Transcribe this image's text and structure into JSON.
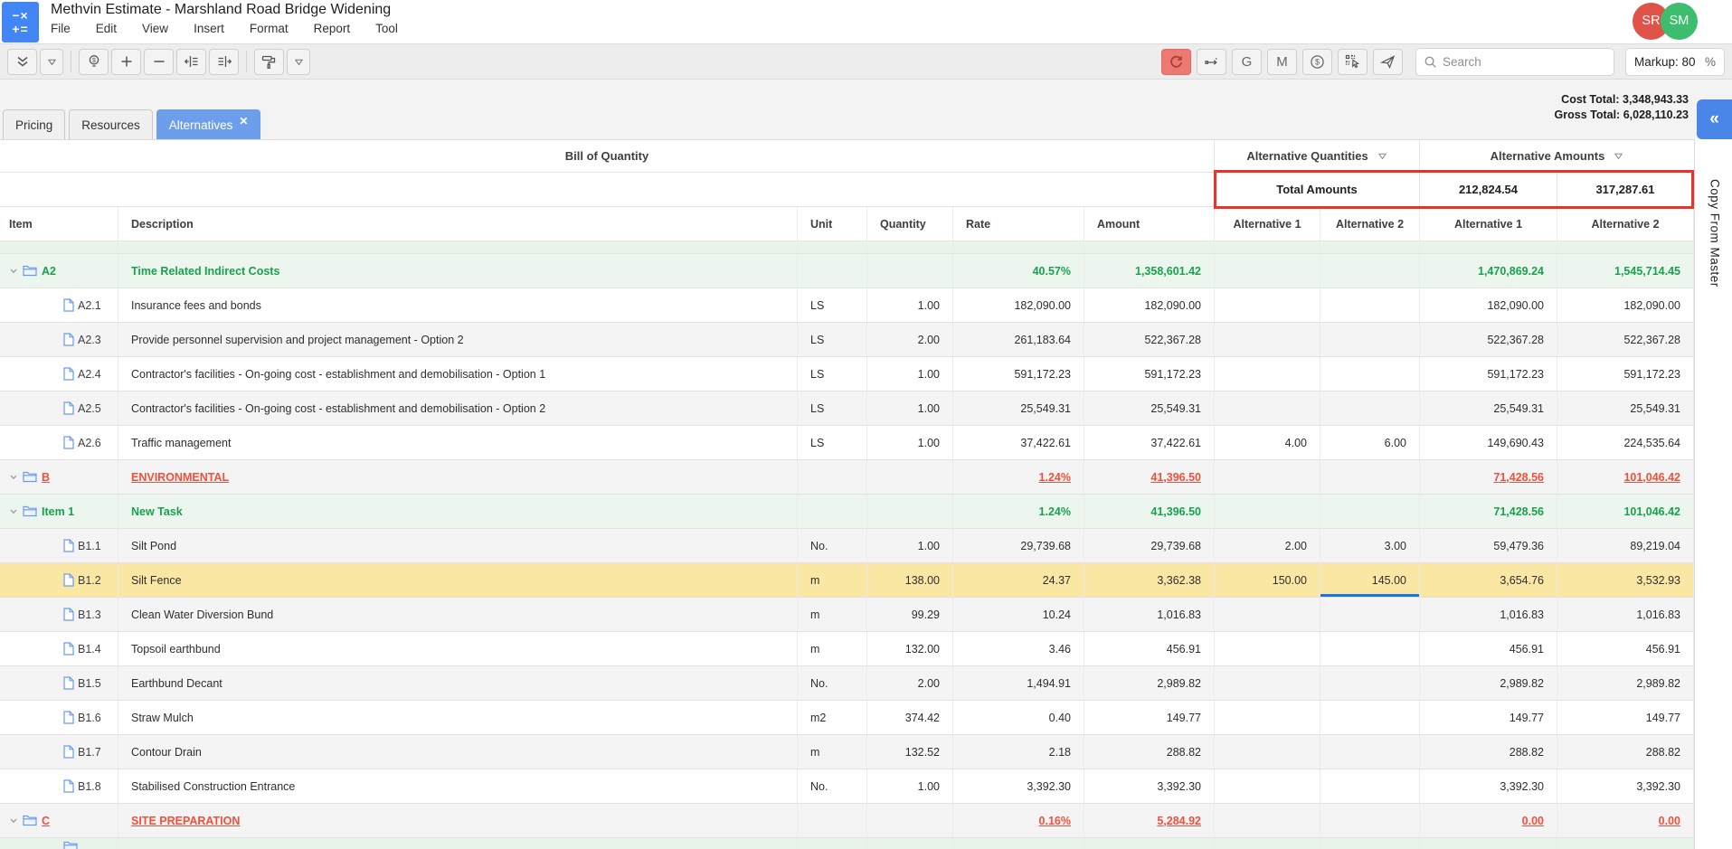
{
  "header": {
    "app_title": "Methvin Estimate - Marshland Road Bridge Widening",
    "menus": [
      "File",
      "Edit",
      "View",
      "Insert",
      "Format",
      "Report",
      "Tool"
    ],
    "avatars": [
      {
        "initials": "SR",
        "color": "#df5348"
      },
      {
        "initials": "SM",
        "color": "#3dbd6e"
      }
    ]
  },
  "toolbar": {
    "g_label": "G",
    "m_label": "M",
    "search_placeholder": "Search",
    "markup_label": "Markup:",
    "markup_value": "80",
    "markup_unit": "%"
  },
  "tabs": [
    {
      "label": "Pricing",
      "active": false
    },
    {
      "label": "Resources",
      "active": false
    },
    {
      "label": "Alternatives",
      "active": true,
      "closable": true
    }
  ],
  "totals": {
    "cost_label": "Cost Total:",
    "cost_value": "3,348,943.33",
    "gross_label": "Gross Total:",
    "gross_value": "6,028,110.23"
  },
  "side_panel": {
    "label": "Copy From Master"
  },
  "table": {
    "group_headers": {
      "boq": "Bill of Quantity",
      "alt_quantities": "Alternative Quantities",
      "alt_amounts": "Alternative Amounts"
    },
    "total_row": {
      "label": "Total Amounts",
      "alt1_amount": "212,824.54",
      "alt2_amount": "317,287.61"
    },
    "columns": [
      "Item",
      "Description",
      "Unit",
      "Quantity",
      "Rate",
      "Amount",
      "Alternative 1",
      "Alternative 2",
      "Alternative 1",
      "Alternative 2"
    ],
    "rows": [
      {
        "type": "strip"
      },
      {
        "type": "group-green",
        "code": "A2",
        "desc": "Time Related Indirect Costs",
        "rate": "40.57%",
        "amount": "1,358,601.42",
        "alt1a": "1,470,869.24",
        "alt2a": "1,545,714.45"
      },
      {
        "type": "item",
        "code": "A2.1",
        "desc": "Insurance fees and bonds",
        "unit": "LS",
        "qty": "1.00",
        "rate": "182,090.00",
        "amount": "182,090.00",
        "alt1a": "182,090.00",
        "alt2a": "182,090.00"
      },
      {
        "type": "item",
        "code": "A2.3",
        "desc": "Provide personnel supervision and project management - Option 2",
        "unit": "LS",
        "qty": "2.00",
        "rate": "261,183.64",
        "amount": "522,367.28",
        "alt1a": "522,367.28",
        "alt2a": "522,367.28"
      },
      {
        "type": "item",
        "code": "A2.4",
        "desc": "Contractor's facilities - On-going cost - establishment and demobilisation - Option 1",
        "unit": "LS",
        "qty": "1.00",
        "rate": "591,172.23",
        "amount": "591,172.23",
        "alt1a": "591,172.23",
        "alt2a": "591,172.23"
      },
      {
        "type": "item",
        "code": "A2.5",
        "desc": "Contractor's facilities - On-going cost - establishment and demobilisation - Option 2",
        "unit": "LS",
        "qty": "1.00",
        "rate": "25,549.31",
        "amount": "25,549.31",
        "alt1a": "25,549.31",
        "alt2a": "25,549.31"
      },
      {
        "type": "item",
        "code": "A2.6",
        "desc": "Traffic management",
        "unit": "LS",
        "qty": "1.00",
        "rate": "37,422.61",
        "amount": "37,422.61",
        "alt1q": "4.00",
        "alt2q": "6.00",
        "alt1a": "149,690.43",
        "alt2a": "224,535.64"
      },
      {
        "type": "group-red",
        "code": "B",
        "desc": "ENVIRONMENTAL",
        "rate": "1.24%",
        "amount": "41,396.50",
        "alt1a": "71,428.56",
        "alt2a": "101,046.42"
      },
      {
        "type": "group-green",
        "code": "Item 1",
        "desc": "New Task",
        "green_bg": true,
        "rate": "1.24%",
        "amount": "41,396.50",
        "alt1a": "71,428.56",
        "alt2a": "101,046.42"
      },
      {
        "type": "item",
        "code": "B1.1",
        "desc": "Silt Pond",
        "unit": "No.",
        "qty": "1.00",
        "rate": "29,739.68",
        "amount": "29,739.68",
        "alt1q": "2.00",
        "alt2q": "3.00",
        "alt1a": "59,479.36",
        "alt2a": "89,219.04"
      },
      {
        "type": "item",
        "code": "B1.2",
        "desc": "Silt Fence",
        "unit": "m",
        "selected": true,
        "active_cell": "alt2q",
        "qty": "138.00",
        "rate": "24.37",
        "amount": "3,362.38",
        "alt1q": "150.00",
        "alt2q": "145.00",
        "alt1a": "3,654.76",
        "alt2a": "3,532.93"
      },
      {
        "type": "item",
        "code": "B1.3",
        "desc": "Clean Water Diversion Bund",
        "unit": "m",
        "qty": "99.29",
        "rate": "10.24",
        "amount": "1,016.83",
        "alt1a": "1,016.83",
        "alt2a": "1,016.83"
      },
      {
        "type": "item",
        "code": "B1.4",
        "desc": "Topsoil earthbund",
        "unit": "m",
        "qty": "132.00",
        "rate": "3.46",
        "amount": "456.91",
        "alt1a": "456.91",
        "alt2a": "456.91"
      },
      {
        "type": "item",
        "code": "B1.5",
        "desc": "Earthbund Decant",
        "unit": "No.",
        "qty": "2.00",
        "rate": "1,494.91",
        "amount": "2,989.82",
        "alt1a": "2,989.82",
        "alt2a": "2,989.82"
      },
      {
        "type": "item",
        "code": "B1.6",
        "desc": "Straw Mulch",
        "unit": "m2",
        "qty": "374.42",
        "rate": "0.40",
        "amount": "149.77",
        "alt1a": "149.77",
        "alt2a": "149.77"
      },
      {
        "type": "item",
        "code": "B1.7",
        "desc": "Contour Drain",
        "unit": "m",
        "qty": "132.52",
        "rate": "2.18",
        "amount": "288.82",
        "alt1a": "288.82",
        "alt2a": "288.82"
      },
      {
        "type": "item",
        "code": "B1.8",
        "desc": "Stabilised Construction Entrance",
        "unit": "No.",
        "qty": "1.00",
        "rate": "3,392.30",
        "amount": "3,392.30",
        "alt1a": "3,392.30",
        "alt2a": "3,392.30"
      },
      {
        "type": "group-red",
        "code": "C",
        "desc": "SITE PREPARATION",
        "rate": "0.16%",
        "amount": "5,284.92",
        "alt1a": "0.00",
        "alt2a": "0.00"
      },
      {
        "type": "strip",
        "partial": true
      }
    ]
  }
}
